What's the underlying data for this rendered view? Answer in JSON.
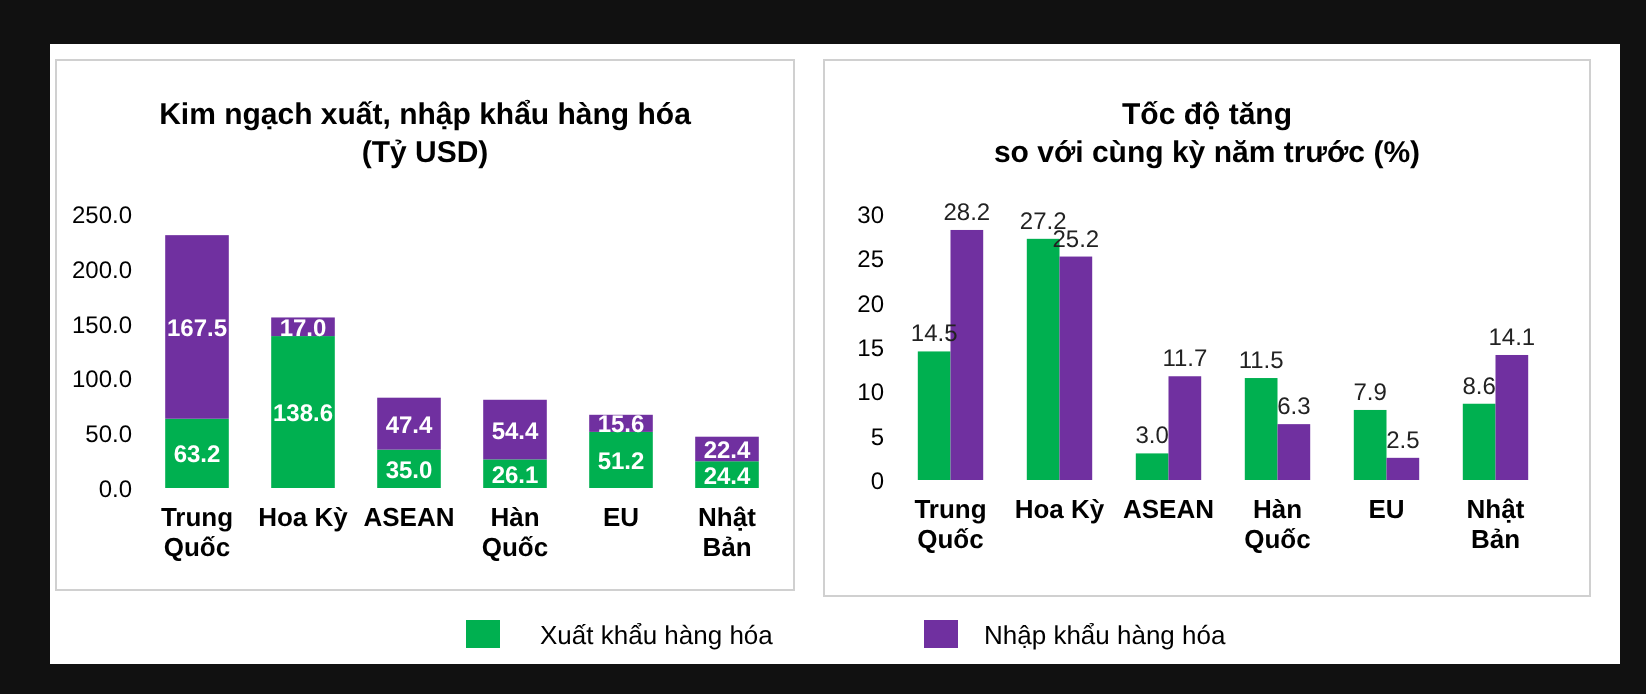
{
  "chart_data": [
    {
      "type": "bar",
      "title": "Kim ngạch xuất, nhập khẩu hàng hóa",
      "subtitle": "(Tỷ USD)",
      "stacked": true,
      "categories": [
        "Trung Quốc",
        "Hoa Kỳ",
        "ASEAN",
        "Hàn Quốc",
        "EU",
        "Nhật Bản"
      ],
      "series": [
        {
          "name": "Xuất khẩu hàng hóa",
          "color": "#00b050",
          "values": [
            63.2,
            138.6,
            35.0,
            26.1,
            51.2,
            24.4
          ],
          "value_labels": [
            "63.2",
            "138.6",
            "35.0",
            "26.1",
            "51.2",
            "24.4"
          ]
        },
        {
          "name": "Nhập khẩu hàng hóa",
          "color": "#7030a0",
          "values": [
            167.5,
            17.0,
            47.4,
            54.4,
            15.6,
            22.4
          ],
          "value_labels": [
            "167.5",
            "17.0",
            "47.4",
            "54.4",
            "15.6",
            "22.4"
          ]
        }
      ],
      "ylim": [
        0,
        250
      ],
      "yticks": [
        {
          "value": 0,
          "label": "0.0"
        },
        {
          "value": 50,
          "label": "50.0"
        },
        {
          "value": 100,
          "label": "100.0"
        },
        {
          "value": 150,
          "label": "150.0"
        },
        {
          "value": 200,
          "label": "200.0"
        },
        {
          "value": 250,
          "label": "250.0"
        }
      ],
      "grid": false,
      "legend": "bottom"
    },
    {
      "type": "bar",
      "title": "Tốc độ tăng",
      "subtitle": "so với cùng kỳ năm trước (%)",
      "categories": [
        "Trung Quốc",
        "Hoa Kỳ",
        "ASEAN",
        "Hàn Quốc",
        "EU",
        "Nhật Bản"
      ],
      "series": [
        {
          "name": "Xuất khẩu hàng hóa",
          "color": "#00b050",
          "values": [
            14.5,
            27.2,
            3.0,
            11.5,
            7.9,
            8.6
          ],
          "value_labels": [
            "14.5",
            "27.2",
            "3.0",
            "11.5",
            "7.9",
            "8.6"
          ]
        },
        {
          "name": "Nhập khẩu hàng hóa",
          "color": "#7030a0",
          "values": [
            28.2,
            25.2,
            11.7,
            6.3,
            2.5,
            14.1
          ],
          "value_labels": [
            "28.2",
            "25.2",
            "11.7",
            "6.3",
            "2.5",
            "14.1"
          ]
        }
      ],
      "ylim": [
        0,
        30
      ],
      "yticks": [
        0,
        5,
        10,
        15,
        20,
        25,
        30
      ],
      "grid": false,
      "legend": "bottom"
    }
  ]
}
